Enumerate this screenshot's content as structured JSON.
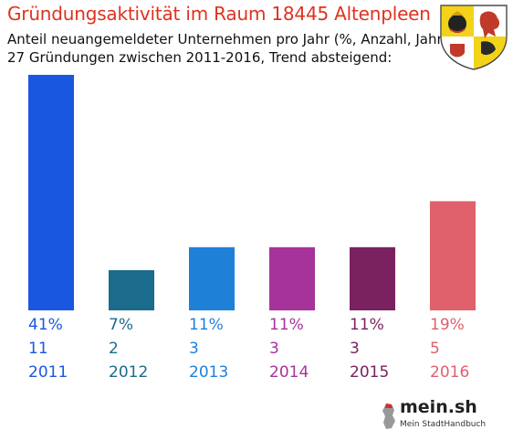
{
  "header": {
    "title": "Gründungsaktivität im Raum 18445 Altenpleen",
    "subtitle_line1": "Anteil neuangemeldeter Unternehmen pro Jahr (%, Anzahl, Jahr)",
    "subtitle_line2": "27 Gründungen zwischen 2011-2016, Trend absteigend:"
  },
  "brand": {
    "name": "mein.sh",
    "tagline": "Mein StadtHandbuch"
  },
  "crest": {
    "icon": "coat-of-arms-icon"
  },
  "colors": {
    "title": "#e0321e"
  },
  "chart_data": {
    "type": "bar",
    "categories": [
      "2011",
      "2012",
      "2013",
      "2014",
      "2015",
      "2016"
    ],
    "values": [
      41,
      7,
      11,
      11,
      11,
      19
    ],
    "percent_labels": [
      "41%",
      "7%",
      "11%",
      "11%",
      "11%",
      "19%"
    ],
    "counts": [
      "11",
      "2",
      "3",
      "3",
      "3",
      "5"
    ],
    "colors": [
      "#1a57e0",
      "#1a6b8c",
      "#1f80d8",
      "#a63399",
      "#7a2260",
      "#e0606c"
    ],
    "ylim": [
      0,
      41
    ],
    "grid": false,
    "legend": "none"
  }
}
